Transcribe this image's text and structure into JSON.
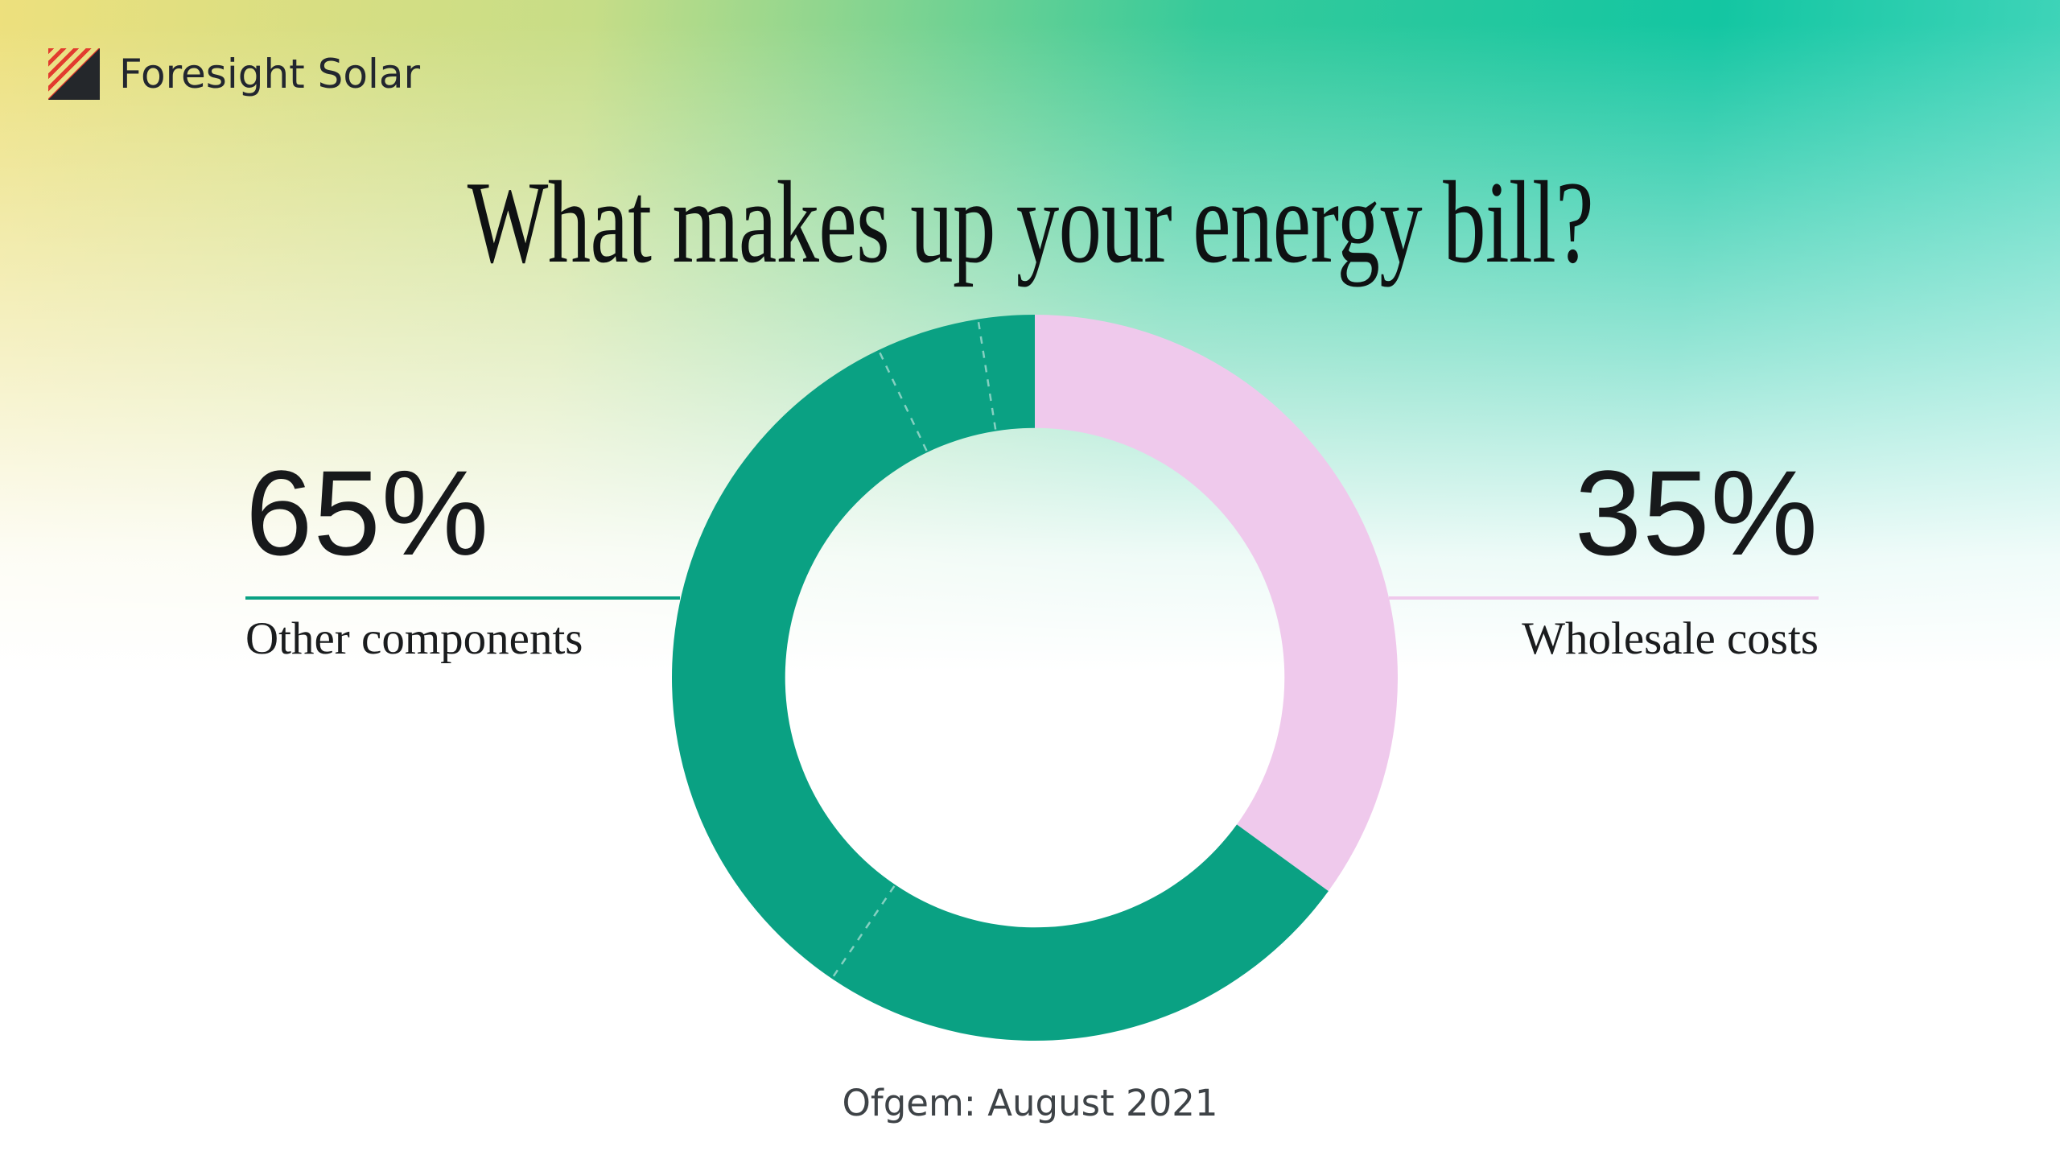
{
  "brand": {
    "name": "Foresight Solar"
  },
  "title": "What makes up your energy bill?",
  "source": "Ofgem: August 2021",
  "legend": {
    "left": {
      "value": "65%",
      "label": "Other components"
    },
    "right": {
      "value": "35%",
      "label": "Wholesale costs"
    }
  },
  "colors": {
    "accent_green": "#0AA183",
    "accent_pink": "#EFC9EC",
    "logo_red": "#E23B2E",
    "logo_black": "#24272B",
    "bg_yellow": "#EDE07D",
    "bg_yellowgreen": "#C6DD87",
    "bg_green": "#35CA9B",
    "bg_teal": "#13C6A2",
    "bg_teal_light": "#4FD9C1"
  },
  "chart_data": {
    "type": "pie",
    "subtype": "donut",
    "title": "What makes up your energy bill?",
    "source": "Ofgem: August 2021",
    "categories": [
      "Wholesale costs",
      "Other components"
    ],
    "values": [
      35,
      65
    ],
    "colors": [
      "#EFC9EC",
      "#0AA183"
    ],
    "labels": [
      "35%",
      "65%"
    ],
    "start_angle_deg": 0,
    "clockwise": true,
    "inner_radius_ratio": 0.688,
    "divider_angles_deg": [
      214,
      334.5,
      351
    ],
    "legend_position": "sides"
  }
}
